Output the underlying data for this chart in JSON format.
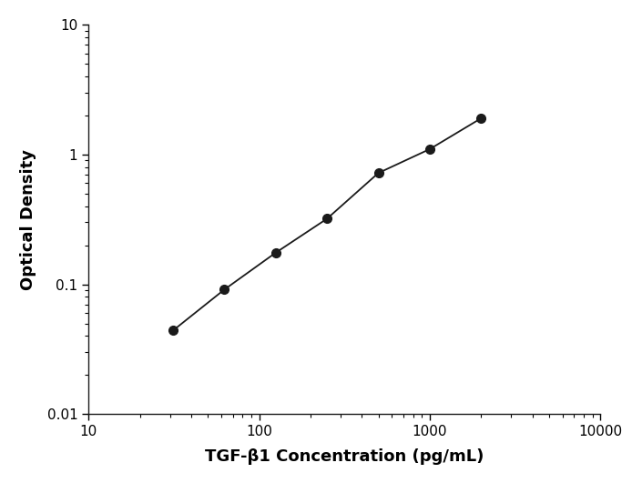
{
  "x": [
    31.25,
    62.5,
    125,
    250,
    500,
    1000,
    2000
  ],
  "y": [
    0.044,
    0.091,
    0.175,
    0.32,
    0.72,
    1.1,
    1.9
  ],
  "xlim": [
    10,
    10000
  ],
  "ylim": [
    0.01,
    10
  ],
  "xlabel": "TGF-β1 Concentration (pg/mL)",
  "ylabel": "Optical Density",
  "line_color": "#1a1a1a",
  "marker_color": "#1a1a1a",
  "marker_size": 7,
  "line_width": 1.3,
  "background_color": "#ffffff",
  "xlabel_fontsize": 13,
  "ylabel_fontsize": 13,
  "tick_fontsize": 11,
  "xtick_labels": [
    "10",
    "100",
    "1000",
    "10000"
  ],
  "ytick_labels": [
    "0.01",
    "0.1",
    "1",
    "10"
  ]
}
